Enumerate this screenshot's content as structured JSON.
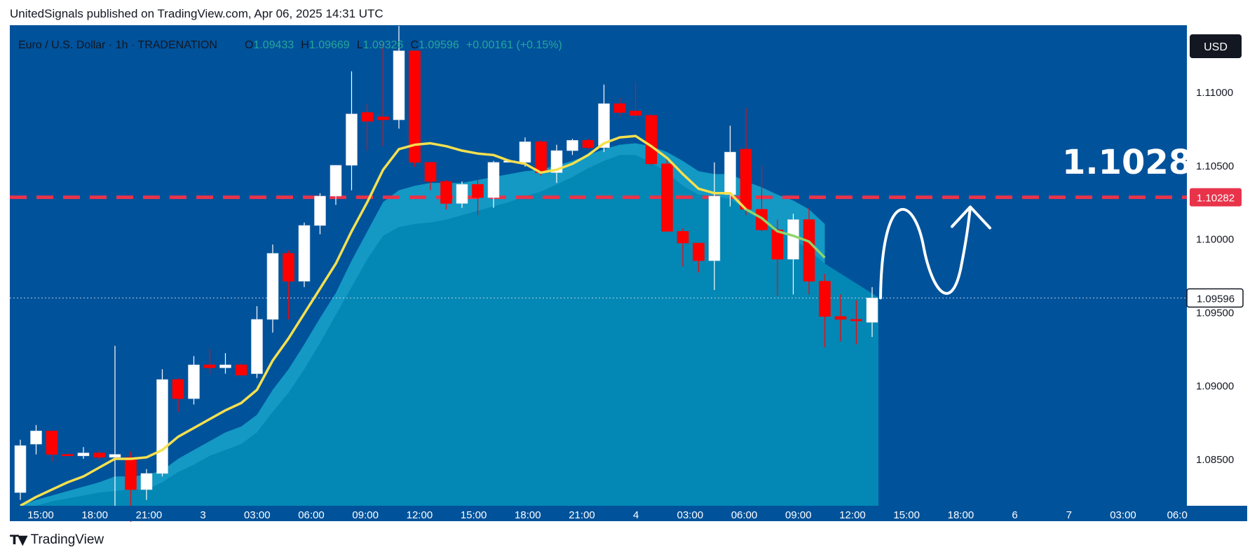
{
  "caption": "UnitedSignals published on TradingView.com, Apr 06, 2025 14:31 UTC",
  "header": {
    "symbol": "Euro  / U.S. Dollar · 1h · TRADENATION",
    "o_label": "O",
    "o_value": "1.09433",
    "h_label": "H",
    "h_value": "1.09669",
    "l_label": "L",
    "l_value": "1.09326",
    "c_label": "C",
    "c_value": "1.09596",
    "change": "+0.00161 (+0.15%)"
  },
  "currency_button": "USD",
  "footer_brand": "TradingView",
  "annotation": "1.1028",
  "colors": {
    "panel_bg": "#00529b",
    "area_fill": "#0387b4",
    "area_edge": "#1399c4",
    "ema_line": "#f5e04e",
    "ema_tail": "#8fd46a",
    "candle_up": "#ffffff",
    "candle_down": "#ff0000",
    "target_line": "#e8334a",
    "label_dark": "#131722"
  },
  "chart_data": {
    "type": "candlestick",
    "title": "Euro / U.S. Dollar · 1h · TRADENATION",
    "interval": "1h",
    "ylim": [
      1.0818,
      1.1134
    ],
    "y_ticks": [
      "1.08500",
      "1.09000",
      "1.09500",
      "1.10000",
      "1.10500",
      "1.11000"
    ],
    "x_ticks": [
      "15:00",
      "18:00",
      "21:00",
      "3",
      "03:00",
      "06:00",
      "09:00",
      "12:00",
      "15:00",
      "18:00",
      "21:00",
      "4",
      "03:00",
      "06:00",
      "09:00",
      "12:00",
      "15:00",
      "18:00",
      "6",
      "7",
      "03:00",
      "06:0"
    ],
    "candles": [
      {
        "o": 1.0827,
        "h": 1.0863,
        "l": 1.0822,
        "c": 1.0859
      },
      {
        "o": 1.086,
        "h": 1.0873,
        "l": 1.0853,
        "c": 1.0869
      },
      {
        "o": 1.0869,
        "h": 1.0869,
        "l": 1.0848,
        "c": 1.0853
      },
      {
        "o": 1.0853,
        "h": 1.0854,
        "l": 1.0852,
        "c": 1.0852
      },
      {
        "o": 1.0852,
        "h": 1.0858,
        "l": 1.085,
        "c": 1.0854
      },
      {
        "o": 1.0854,
        "h": 1.0856,
        "l": 1.0849,
        "c": 1.0851
      },
      {
        "o": 1.0851,
        "h": 1.0927,
        "l": 1.081,
        "c": 1.0853
      },
      {
        "o": 1.0851,
        "h": 1.0855,
        "l": 1.0807,
        "c": 1.0829
      },
      {
        "o": 1.0829,
        "h": 1.0843,
        "l": 1.0822,
        "c": 1.084
      },
      {
        "o": 1.084,
        "h": 1.0911,
        "l": 1.0838,
        "c": 1.0904
      },
      {
        "o": 1.0904,
        "h": 1.0905,
        "l": 1.0882,
        "c": 1.0891
      },
      {
        "o": 1.0891,
        "h": 1.092,
        "l": 1.0887,
        "c": 1.0914
      },
      {
        "o": 1.0914,
        "h": 1.0925,
        "l": 1.0908,
        "c": 1.0912
      },
      {
        "o": 1.0912,
        "h": 1.0922,
        "l": 1.0908,
        "c": 1.0914
      },
      {
        "o": 1.0914,
        "h": 1.0915,
        "l": 1.0907,
        "c": 1.0907
      },
      {
        "o": 1.0908,
        "h": 1.0954,
        "l": 1.0905,
        "c": 1.0945
      },
      {
        "o": 1.0945,
        "h": 1.0996,
        "l": 1.0936,
        "c": 1.099
      },
      {
        "o": 1.099,
        "h": 1.0992,
        "l": 1.0945,
        "c": 1.0971
      },
      {
        "o": 1.0971,
        "h": 1.1011,
        "l": 1.0967,
        "c": 1.1009
      },
      {
        "o": 1.1009,
        "h": 1.1031,
        "l": 1.1003,
        "c": 1.1029
      },
      {
        "o": 1.1029,
        "h": 1.105,
        "l": 1.1023,
        "c": 1.105
      },
      {
        "o": 1.105,
        "h": 1.1114,
        "l": 1.1033,
        "c": 1.1085
      },
      {
        "o": 1.1086,
        "h": 1.1092,
        "l": 1.106,
        "c": 1.108
      },
      {
        "o": 1.1083,
        "h": 1.1134,
        "l": 1.1063,
        "c": 1.1081
      },
      {
        "o": 1.1081,
        "h": 1.1145,
        "l": 1.1075,
        "c": 1.1128
      },
      {
        "o": 1.1128,
        "h": 1.1128,
        "l": 1.1049,
        "c": 1.1052
      },
      {
        "o": 1.1052,
        "h": 1.1052,
        "l": 1.1033,
        "c": 1.1039
      },
      {
        "o": 1.1039,
        "h": 1.104,
        "l": 1.102,
        "c": 1.1024
      },
      {
        "o": 1.1024,
        "h": 1.1039,
        "l": 1.1021,
        "c": 1.1037
      },
      {
        "o": 1.1037,
        "h": 1.104,
        "l": 1.1016,
        "c": 1.1028
      },
      {
        "o": 1.1028,
        "h": 1.1053,
        "l": 1.1021,
        "c": 1.1052
      },
      {
        "o": 1.1053,
        "h": 1.1054,
        "l": 1.1052,
        "c": 1.1053
      },
      {
        "o": 1.1052,
        "h": 1.1069,
        "l": 1.1049,
        "c": 1.1066
      },
      {
        "o": 1.1066,
        "h": 1.1067,
        "l": 1.1043,
        "c": 1.1045
      },
      {
        "o": 1.1045,
        "h": 1.1064,
        "l": 1.1038,
        "c": 1.106
      },
      {
        "o": 1.106,
        "h": 1.1068,
        "l": 1.1057,
        "c": 1.1067
      },
      {
        "o": 1.1067,
        "h": 1.1068,
        "l": 1.1061,
        "c": 1.1062
      },
      {
        "o": 1.1062,
        "h": 1.1105,
        "l": 1.1059,
        "c": 1.1092
      },
      {
        "o": 1.1092,
        "h": 1.1096,
        "l": 1.1083,
        "c": 1.1086
      },
      {
        "o": 1.1087,
        "h": 1.1107,
        "l": 1.1081,
        "c": 1.1084
      },
      {
        "o": 1.1084,
        "h": 1.1085,
        "l": 1.105,
        "c": 1.1051
      },
      {
        "o": 1.1051,
        "h": 1.1056,
        "l": 1.1005,
        "c": 1.1005
      },
      {
        "o": 1.1005,
        "h": 1.1007,
        "l": 1.0981,
        "c": 1.0997
      },
      {
        "o": 1.0997,
        "h": 1.0997,
        "l": 1.0977,
        "c": 1.0985
      },
      {
        "o": 1.0985,
        "h": 1.1052,
        "l": 1.0965,
        "c": 1.1029
      },
      {
        "o": 1.103,
        "h": 1.1077,
        "l": 1.1022,
        "c": 1.1059
      },
      {
        "o": 1.1061,
        "h": 1.1089,
        "l": 1.1016,
        "c": 1.102
      },
      {
        "o": 1.102,
        "h": 1.105,
        "l": 1.1005,
        "c": 1.1006
      },
      {
        "o": 1.1006,
        "h": 1.1013,
        "l": 1.0961,
        "c": 1.0986
      },
      {
        "o": 1.0986,
        "h": 1.1017,
        "l": 1.0962,
        "c": 1.1013
      },
      {
        "o": 1.1013,
        "h": 1.1021,
        "l": 1.0962,
        "c": 1.0971
      },
      {
        "o": 1.0971,
        "h": 1.0976,
        "l": 1.0926,
        "c": 1.0947
      },
      {
        "o": 1.0947,
        "h": 1.0962,
        "l": 1.093,
        "c": 1.0945
      },
      {
        "o": 1.0945,
        "h": 1.0958,
        "l": 1.0928,
        "c": 1.0944
      },
      {
        "o": 1.0943,
        "h": 1.0967,
        "l": 1.0933,
        "c": 1.09596
      }
    ],
    "ema": [
      1.0818,
      1.0824,
      1.0829,
      1.0834,
      1.0838,
      1.0844,
      1.085,
      1.085,
      1.0851,
      1.0856,
      1.0865,
      1.0871,
      1.0877,
      1.0883,
      1.0888,
      1.0897,
      1.0917,
      1.0932,
      1.0949,
      1.0966,
      1.0983,
      1.1005,
      1.1025,
      1.1047,
      1.1061,
      1.1064,
      1.1065,
      1.1063,
      1.106,
      1.1058,
      1.1057,
      1.1053,
      1.1051,
      1.1045,
      1.1047,
      1.1051,
      1.1057,
      1.1065,
      1.1069,
      1.107,
      1.1063,
      1.1055,
      1.1044,
      1.1034,
      1.1031,
      1.1031,
      1.102,
      1.1014,
      1.1005,
      1.1002,
      1.0998,
      1.0987
    ],
    "area_upper": [
      1.0818,
      1.0822,
      1.0825,
      1.0828,
      1.0831,
      1.0834,
      1.0838,
      1.0838,
      1.0839,
      1.0842,
      1.085,
      1.0856,
      1.0862,
      1.0868,
      1.0872,
      1.088,
      1.0897,
      1.0911,
      1.0928,
      1.0946,
      1.0963,
      1.0985,
      1.1005,
      1.1025,
      1.1033,
      1.1036,
      1.1038,
      1.1038,
      1.1038,
      1.104,
      1.1042,
      1.1044,
      1.1046,
      1.1047,
      1.105,
      1.1053,
      1.1057,
      1.1061,
      1.1064,
      1.1065,
      1.1063,
      1.1059,
      1.1053,
      1.1046,
      1.1044,
      1.1044,
      1.1039,
      1.1035,
      1.103,
      1.1026,
      1.102,
      1.101
    ],
    "area_lower": [
      1.0818,
      1.0818,
      1.0821,
      1.0823,
      1.0825,
      1.0827,
      1.0828,
      1.0829,
      1.0829,
      1.0834,
      1.0841,
      1.0846,
      1.0852,
      1.0856,
      1.086,
      1.0868,
      1.0882,
      1.0895,
      1.0911,
      1.0929,
      1.0948,
      1.0967,
      1.0986,
      1.1002,
      1.1008,
      1.101,
      1.1011,
      1.1013,
      1.1016,
      1.1019,
      1.1022,
      1.1025,
      1.1029,
      1.1032,
      1.1037,
      1.1042,
      1.1048,
      1.1053,
      1.1057,
      1.1057,
      1.1052,
      1.1045,
      1.1036,
      1.103,
      1.1029,
      1.1027,
      1.102,
      1.1014,
      1.1007,
      1.1,
      1.0992,
      1.0983
    ],
    "target_level": 1.10282,
    "target_label": "1.10282",
    "last_price": 1.09596,
    "last_price_label": "1.09596"
  }
}
